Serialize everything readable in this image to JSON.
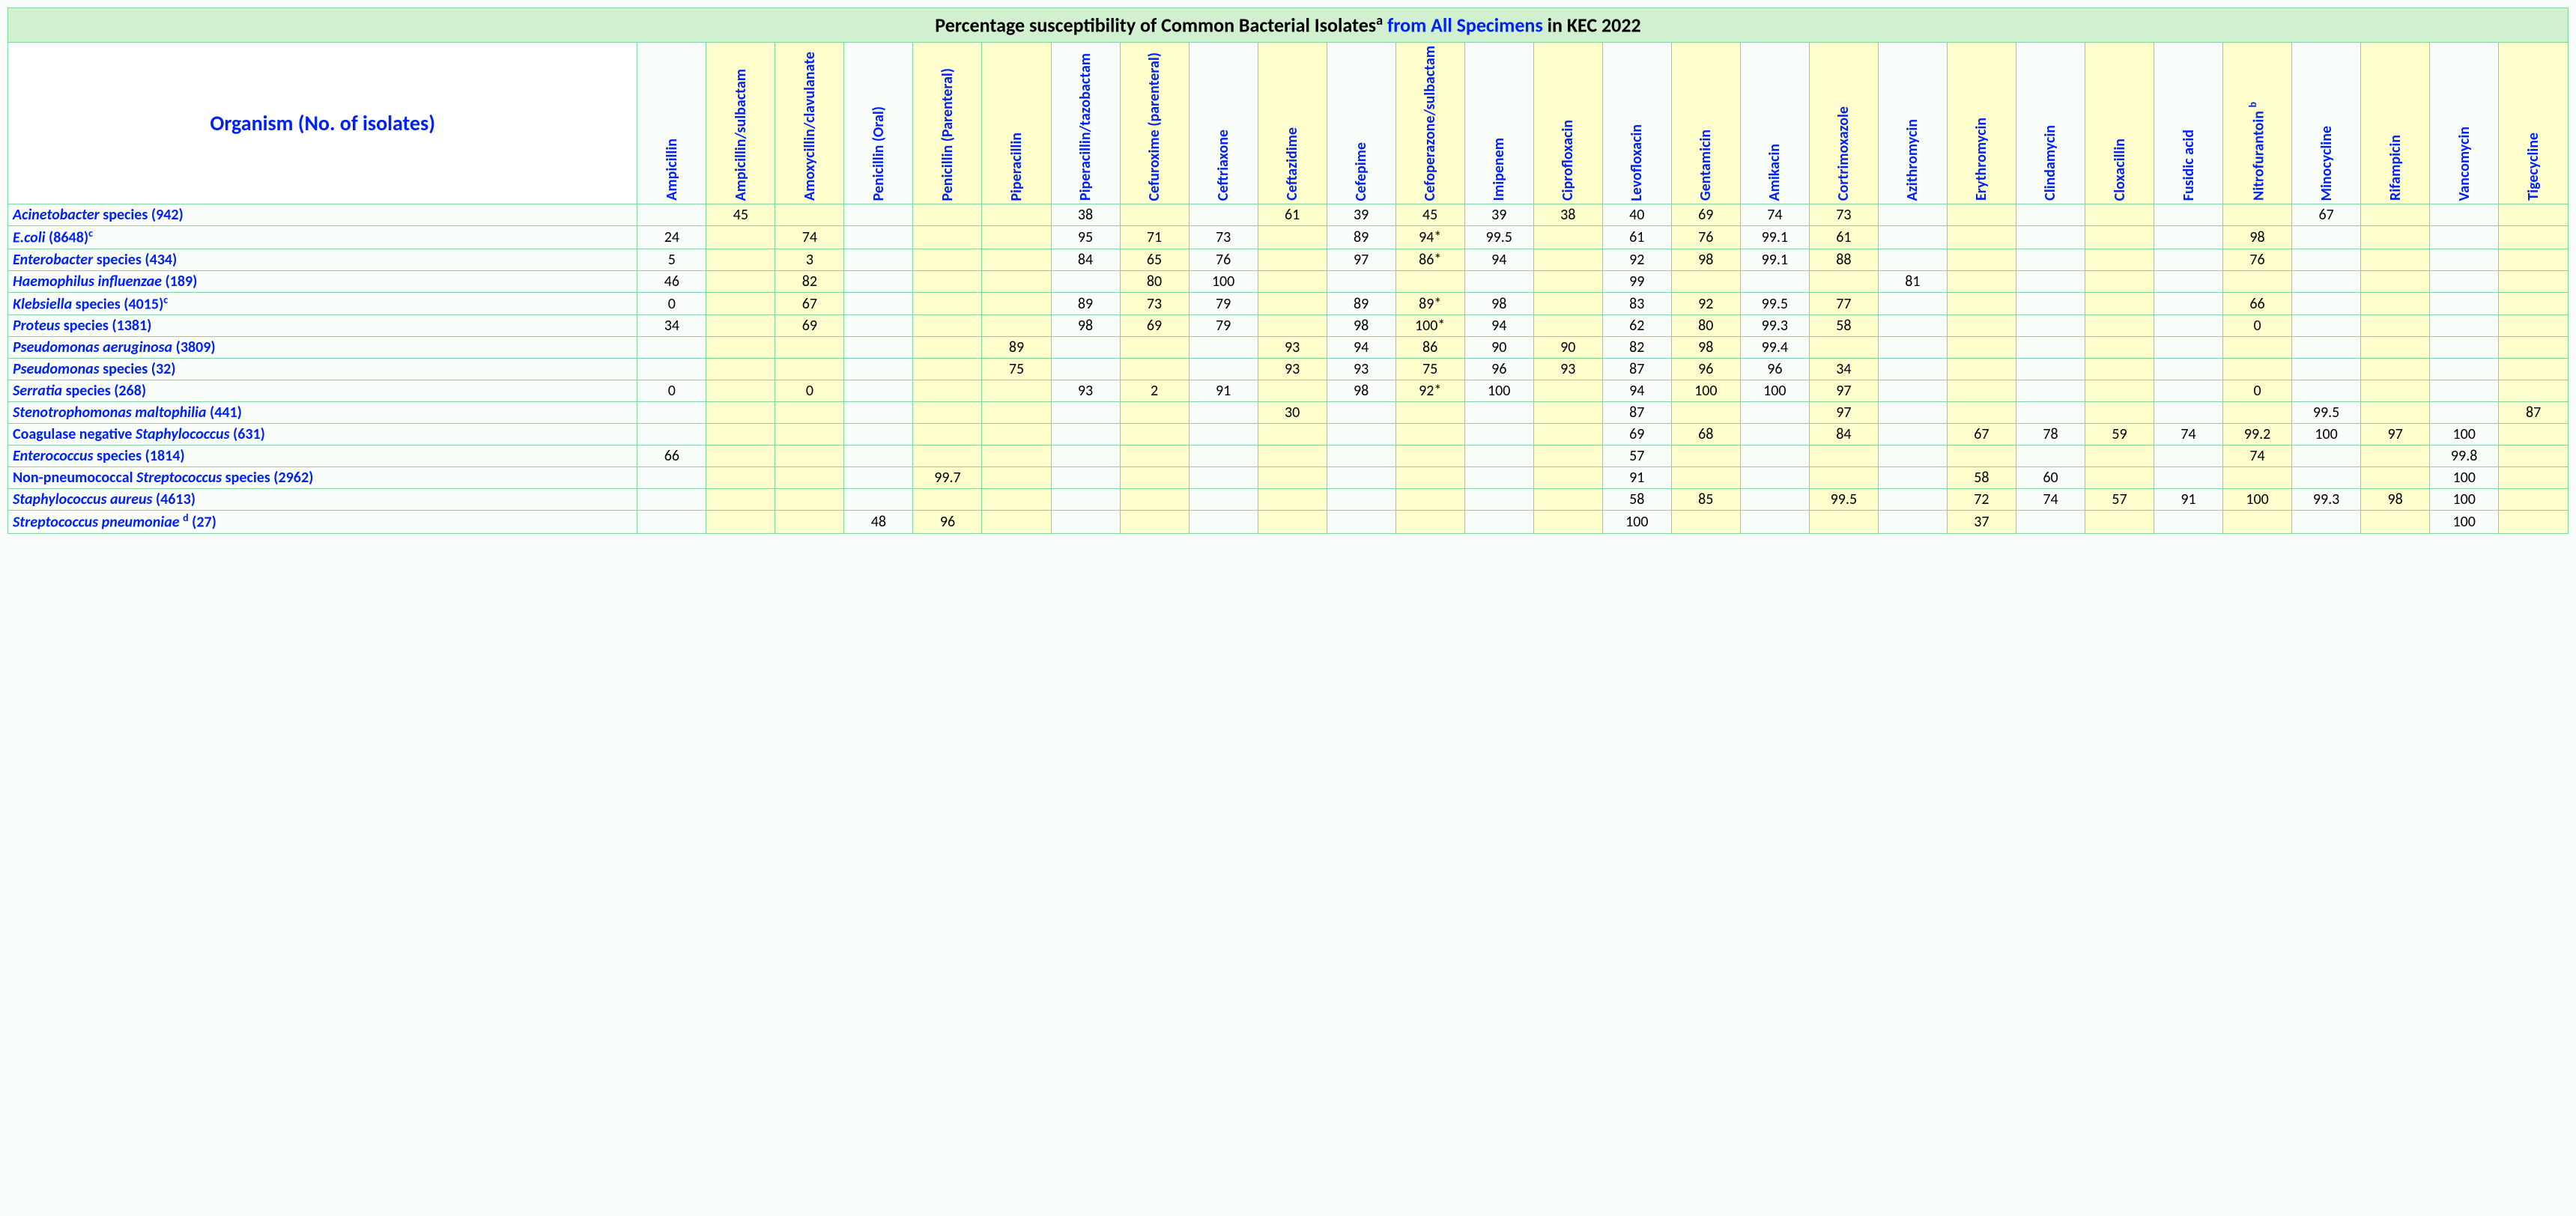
{
  "title": {
    "part1": "Percentage susceptibility of Common Bacterial Isolates",
    "sup1": "a",
    "part2_blue": " from All Specimens ",
    "part3": "in KEC 2022"
  },
  "org_header": "Organism (No. of isolates)",
  "antibiotics": [
    "Ampicillin",
    "Ampicillin/sulbactam",
    "Amoxycillin/clavulanate",
    "Penicillin (Oral)",
    "Penicillin (Parenteral)",
    "Piperacillin",
    "Piperacillin/tazobactam",
    "Cefuroxime (parenteral)",
    "Ceftriaxone",
    "Ceftazidime",
    "Cefepime",
    "Cefoperazone/sulbactam",
    "Imipenem",
    "Ciprofloxacin",
    "Levofloxacin",
    "Gentamicin",
    "Amikacin",
    "Cortrimoxazole",
    "Azithromycin",
    "Erythromycin",
    "Clindamycin",
    "Cloxacillin",
    "Fusidic acid",
    "Nitrofurantoin ",
    "Minocycline",
    "Rifampicin",
    "Vancomycin",
    "Tigecycline"
  ],
  "nitro_sup": "b",
  "highlight_cols": [
    1,
    2,
    4,
    5,
    7,
    9,
    11,
    13,
    15,
    17,
    19,
    21,
    23,
    25,
    27
  ],
  "organisms": [
    {
      "parts": [
        {
          "t": "Acinetobacter ",
          "i": true
        },
        {
          "t": "species (942)",
          "i": false
        }
      ],
      "vals": [
        "",
        "45",
        "",
        "",
        "",
        "",
        "38",
        "",
        "",
        "61",
        "39",
        "45",
        "39",
        "38",
        "40",
        "69",
        "74",
        "73",
        "",
        "",
        "",
        "",
        "",
        "",
        "67",
        "",
        "",
        ""
      ]
    },
    {
      "parts": [
        {
          "t": "E.coli  ",
          "i": true
        },
        {
          "t": "(8648)",
          "i": false
        },
        {
          "t": "c",
          "i": false,
          "sup": true
        }
      ],
      "vals": [
        "24",
        "",
        "74",
        "",
        "",
        "",
        "95",
        "71",
        "73",
        "",
        "89",
        "94*",
        "99.5",
        "",
        "61",
        "76",
        "99.1",
        "61",
        "",
        "",
        "",
        "",
        "",
        "98",
        "",
        "",
        "",
        ""
      ]
    },
    {
      "parts": [
        {
          "t": "Enterobacter ",
          "i": true
        },
        {
          "t": "species (434)",
          "i": false
        }
      ],
      "vals": [
        "5",
        "",
        "3",
        "",
        "",
        "",
        "84",
        "65",
        "76",
        "",
        "97",
        "86*",
        "94",
        "",
        "92",
        "98",
        "99.1",
        "88",
        "",
        "",
        "",
        "",
        "",
        "76",
        "",
        "",
        "",
        ""
      ]
    },
    {
      "parts": [
        {
          "t": "Haemophilus influenzae ",
          "i": true
        },
        {
          "t": "(189)",
          "i": false
        }
      ],
      "vals": [
        "46",
        "",
        "82",
        "",
        "",
        "",
        "",
        "80",
        "100",
        "",
        "",
        "",
        "",
        "",
        "99",
        "",
        "",
        "",
        "81",
        "",
        "",
        "",
        "",
        "",
        "",
        "",
        "",
        ""
      ]
    },
    {
      "parts": [
        {
          "t": "Klebsiella ",
          "i": true
        },
        {
          "t": "species (4015)",
          "i": false
        },
        {
          "t": "c",
          "i": false,
          "sup": true
        }
      ],
      "vals": [
        "0",
        "",
        "67",
        "",
        "",
        "",
        "89",
        "73",
        "79",
        "",
        "89",
        "89*",
        "98",
        "",
        "83",
        "92",
        "99.5",
        "77",
        "",
        "",
        "",
        "",
        "",
        "66",
        "",
        "",
        "",
        ""
      ]
    },
    {
      "parts": [
        {
          "t": "Proteus ",
          "i": true
        },
        {
          "t": "species (1381)",
          "i": false
        }
      ],
      "vals": [
        "34",
        "",
        "69",
        "",
        "",
        "",
        "98",
        "69",
        "79",
        "",
        "98",
        "100*",
        "94",
        "",
        "62",
        "80",
        "99.3",
        "58",
        "",
        "",
        "",
        "",
        "",
        "0",
        "",
        "",
        "",
        ""
      ]
    },
    {
      "parts": [
        {
          "t": "Pseudomonas aeruginosa ",
          "i": true
        },
        {
          "t": "(3809)",
          "i": false
        }
      ],
      "vals": [
        "",
        "",
        "",
        "",
        "",
        "89",
        "",
        "",
        "",
        "93",
        "94",
        "86",
        "90",
        "90",
        "82",
        "98",
        "99.4",
        "",
        "",
        "",
        "",
        "",
        "",
        "",
        "",
        "",
        "",
        ""
      ]
    },
    {
      "parts": [
        {
          "t": "Pseudomonas ",
          "i": true
        },
        {
          "t": "species (32)",
          "i": false
        }
      ],
      "vals": [
        "",
        "",
        "",
        "",
        "",
        "75",
        "",
        "",
        "",
        "93",
        "93",
        "75",
        "96",
        "93",
        "87",
        "96",
        "96",
        "34",
        "",
        "",
        "",
        "",
        "",
        "",
        "",
        "",
        "",
        ""
      ]
    },
    {
      "parts": [
        {
          "t": "Serratia ",
          "i": true
        },
        {
          "t": "species (268)",
          "i": false
        }
      ],
      "vals": [
        "0",
        "",
        "0",
        "",
        "",
        "",
        "93",
        "2",
        "91",
        "",
        "98",
        "92*",
        "100",
        "",
        "94",
        "100",
        "100",
        "97",
        "",
        "",
        "",
        "",
        "",
        "0",
        "",
        "",
        "",
        ""
      ]
    },
    {
      "parts": [
        {
          "t": "Stenotrophomonas maltophilia ",
          "i": true
        },
        {
          "t": "(441)",
          "i": false
        }
      ],
      "vals": [
        "",
        "",
        "",
        "",
        "",
        "",
        "",
        "",
        "",
        "30",
        "",
        "",
        "",
        "",
        "87",
        "",
        "",
        "97",
        "",
        "",
        "",
        "",
        "",
        "",
        "99.5",
        "",
        "",
        "87"
      ]
    },
    {
      "parts": [
        {
          "t": "Coagulase negative ",
          "i": false
        },
        {
          "t": "Staphylococcus ",
          "i": true
        },
        {
          "t": "(631)",
          "i": false
        }
      ],
      "vals": [
        "",
        "",
        "",
        "",
        "",
        "",
        "",
        "",
        "",
        "",
        "",
        "",
        "",
        "",
        "69",
        "68",
        "",
        "84",
        "",
        "67",
        "78",
        "59",
        "74",
        "99.2",
        "100",
        "97",
        "100",
        ""
      ]
    },
    {
      "parts": [
        {
          "t": "Enterococcus ",
          "i": true
        },
        {
          "t": "species (1814)",
          "i": false
        }
      ],
      "vals": [
        "66",
        "",
        "",
        "",
        "",
        "",
        "",
        "",
        "",
        "",
        "",
        "",
        "",
        "",
        "57",
        "",
        "",
        "",
        "",
        "",
        "",
        "",
        "",
        "74",
        "",
        "",
        "99.8",
        ""
      ]
    },
    {
      "parts": [
        {
          "t": "Non-pneumococcal ",
          "i": false
        },
        {
          "t": "Streptococcus ",
          "i": true
        },
        {
          "t": "species (2962)",
          "i": false
        }
      ],
      "vals": [
        "",
        "",
        "",
        "",
        "99.7",
        "",
        "",
        "",
        "",
        "",
        "",
        "",
        "",
        "",
        "91",
        "",
        "",
        "",
        "",
        "58",
        "60",
        "",
        "",
        "",
        "",
        "",
        "100",
        ""
      ]
    },
    {
      "parts": [
        {
          "t": "Staphylococcus aureus ",
          "i": true
        },
        {
          "t": "(4613)",
          "i": false
        }
      ],
      "vals": [
        "",
        "",
        "",
        "",
        "",
        "",
        "",
        "",
        "",
        "",
        "",
        "",
        "",
        "",
        "58",
        "85",
        "",
        "99.5",
        "",
        "72",
        "74",
        "57",
        "91",
        "100",
        "99.3",
        "98",
        "100",
        ""
      ]
    },
    {
      "parts": [
        {
          "t": "Streptococcus pneumoniae ",
          "i": true
        },
        {
          "t": "d",
          "i": false,
          "sup": true
        },
        {
          "t": " (27)",
          "i": false
        }
      ],
      "vals": [
        "",
        "",
        "",
        "48",
        "96",
        "",
        "",
        "",
        "",
        "",
        "",
        "",
        "",
        "",
        "100",
        "",
        "",
        "",
        "",
        "37",
        "",
        "",
        "",
        "",
        "",
        "",
        "100",
        ""
      ]
    }
  ],
  "colors": {
    "border": "#7fd99f",
    "title_bg": "#d0f0d0",
    "highlight_bg": "#feffcc",
    "link_blue": "#0021f5"
  }
}
